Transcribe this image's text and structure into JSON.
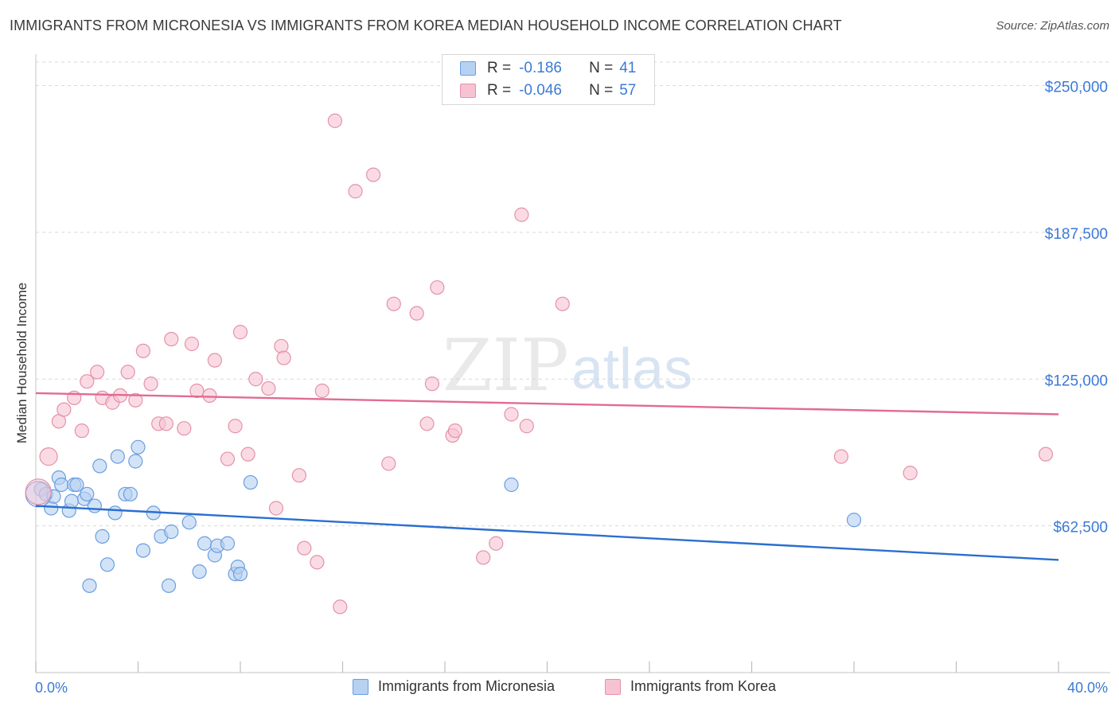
{
  "title": "IMMIGRANTS FROM MICRONESIA VS IMMIGRANTS FROM KOREA MEDIAN HOUSEHOLD INCOME CORRELATION CHART",
  "source": "Source: ZipAtlas.com",
  "watermark": {
    "zip": "ZIP",
    "atlas": "atlas"
  },
  "legend_stats": [
    {
      "r_label": "R = ",
      "r_value": "-0.186",
      "n_label": "N = ",
      "n_value": "41"
    },
    {
      "r_label": "R = ",
      "r_value": "-0.046",
      "n_label": "N = ",
      "n_value": "57"
    }
  ],
  "colors": {
    "micronesia_fill": "#b6d1f2",
    "micronesia_stroke": "#6a9ee0",
    "micronesia_line": "#2a6fd0",
    "korea_fill": "#f7c3d2",
    "korea_stroke": "#e591ab",
    "korea_line": "#e26b93",
    "tick_text": "#3c7ad6",
    "grid": "#d9d9d9"
  },
  "chart_data": {
    "type": "scatter",
    "title": "IMMIGRANTS FROM MICRONESIA VS IMMIGRANTS FROM KOREA MEDIAN HOUSEHOLD INCOME CORRELATION CHART",
    "xlabel": "",
    "ylabel": "Median Household Income",
    "xlim": [
      0,
      40
    ],
    "ylim": [
      0,
      260000
    ],
    "x_tick_labels": [
      "0.0%",
      "40.0%"
    ],
    "y_ticks": [
      62500,
      125000,
      187500,
      250000
    ],
    "y_tick_labels": [
      "$62,500",
      "$125,000",
      "$187,500",
      "$250,000"
    ],
    "grid": "horizontal dashed",
    "legend_position": "bottom",
    "series": [
      {
        "name": "Immigrants from Micronesia",
        "color": "#6a9ee0",
        "trend": {
          "x": [
            0,
            40
          ],
          "y": [
            71000,
            48000
          ]
        },
        "points": [
          [
            0.2,
            78000
          ],
          [
            0.4,
            76000
          ],
          [
            0.6,
            70000
          ],
          [
            0.7,
            75000
          ],
          [
            0.9,
            83000
          ],
          [
            1.0,
            80000
          ],
          [
            1.3,
            69000
          ],
          [
            1.4,
            73000
          ],
          [
            1.5,
            80000
          ],
          [
            1.6,
            80000
          ],
          [
            1.9,
            74000
          ],
          [
            2.0,
            76000
          ],
          [
            2.1,
            37000
          ],
          [
            2.3,
            71000
          ],
          [
            2.5,
            88000
          ],
          [
            2.6,
            58000
          ],
          [
            2.8,
            46000
          ],
          [
            3.1,
            68000
          ],
          [
            3.2,
            92000
          ],
          [
            3.5,
            76000
          ],
          [
            3.7,
            76000
          ],
          [
            3.9,
            90000
          ],
          [
            4.0,
            96000
          ],
          [
            4.2,
            52000
          ],
          [
            4.6,
            68000
          ],
          [
            4.9,
            58000
          ],
          [
            5.2,
            37000
          ],
          [
            5.3,
            60000
          ],
          [
            6.0,
            64000
          ],
          [
            6.4,
            43000
          ],
          [
            6.6,
            55000
          ],
          [
            7.0,
            50000
          ],
          [
            7.1,
            54000
          ],
          [
            7.5,
            55000
          ],
          [
            7.8,
            42000
          ],
          [
            7.9,
            45000
          ],
          [
            8.0,
            42000
          ],
          [
            8.4,
            81000
          ],
          [
            18.6,
            80000
          ],
          [
            32.0,
            65000
          ],
          [
            0.1,
            76000
          ]
        ]
      },
      {
        "name": "Immigrants from Korea",
        "color": "#e591ab",
        "trend": {
          "x": [
            0,
            40
          ],
          "y": [
            119000,
            110000
          ]
        },
        "points": [
          [
            0.5,
            92000
          ],
          [
            0.9,
            107000
          ],
          [
            1.1,
            112000
          ],
          [
            1.5,
            117000
          ],
          [
            1.8,
            103000
          ],
          [
            2.0,
            124000
          ],
          [
            2.4,
            128000
          ],
          [
            2.6,
            117000
          ],
          [
            3.0,
            115000
          ],
          [
            3.3,
            118000
          ],
          [
            3.6,
            128000
          ],
          [
            3.9,
            116000
          ],
          [
            4.2,
            137000
          ],
          [
            4.5,
            123000
          ],
          [
            4.8,
            106000
          ],
          [
            5.1,
            106000
          ],
          [
            5.3,
            142000
          ],
          [
            5.8,
            104000
          ],
          [
            6.1,
            140000
          ],
          [
            6.3,
            120000
          ],
          [
            6.8,
            118000
          ],
          [
            7.0,
            133000
          ],
          [
            7.5,
            91000
          ],
          [
            7.8,
            105000
          ],
          [
            8.0,
            145000
          ],
          [
            8.3,
            93000
          ],
          [
            8.6,
            125000
          ],
          [
            9.1,
            121000
          ],
          [
            9.4,
            70000
          ],
          [
            9.6,
            139000
          ],
          [
            9.7,
            134000
          ],
          [
            10.3,
            84000
          ],
          [
            10.5,
            53000
          ],
          [
            11.0,
            47000
          ],
          [
            11.2,
            120000
          ],
          [
            11.7,
            235000
          ],
          [
            11.9,
            28000
          ],
          [
            12.5,
            205000
          ],
          [
            13.2,
            212000
          ],
          [
            13.8,
            89000
          ],
          [
            14.0,
            157000
          ],
          [
            14.9,
            153000
          ],
          [
            15.3,
            106000
          ],
          [
            15.5,
            123000
          ],
          [
            15.7,
            164000
          ],
          [
            16.3,
            101000
          ],
          [
            16.4,
            103000
          ],
          [
            17.5,
            49000
          ],
          [
            18.0,
            55000
          ],
          [
            18.6,
            110000
          ],
          [
            19.0,
            195000
          ],
          [
            19.2,
            105000
          ],
          [
            20.6,
            157000
          ],
          [
            31.5,
            92000
          ],
          [
            34.2,
            85000
          ],
          [
            39.5,
            93000
          ],
          [
            0.1,
            77000
          ]
        ]
      }
    ]
  }
}
